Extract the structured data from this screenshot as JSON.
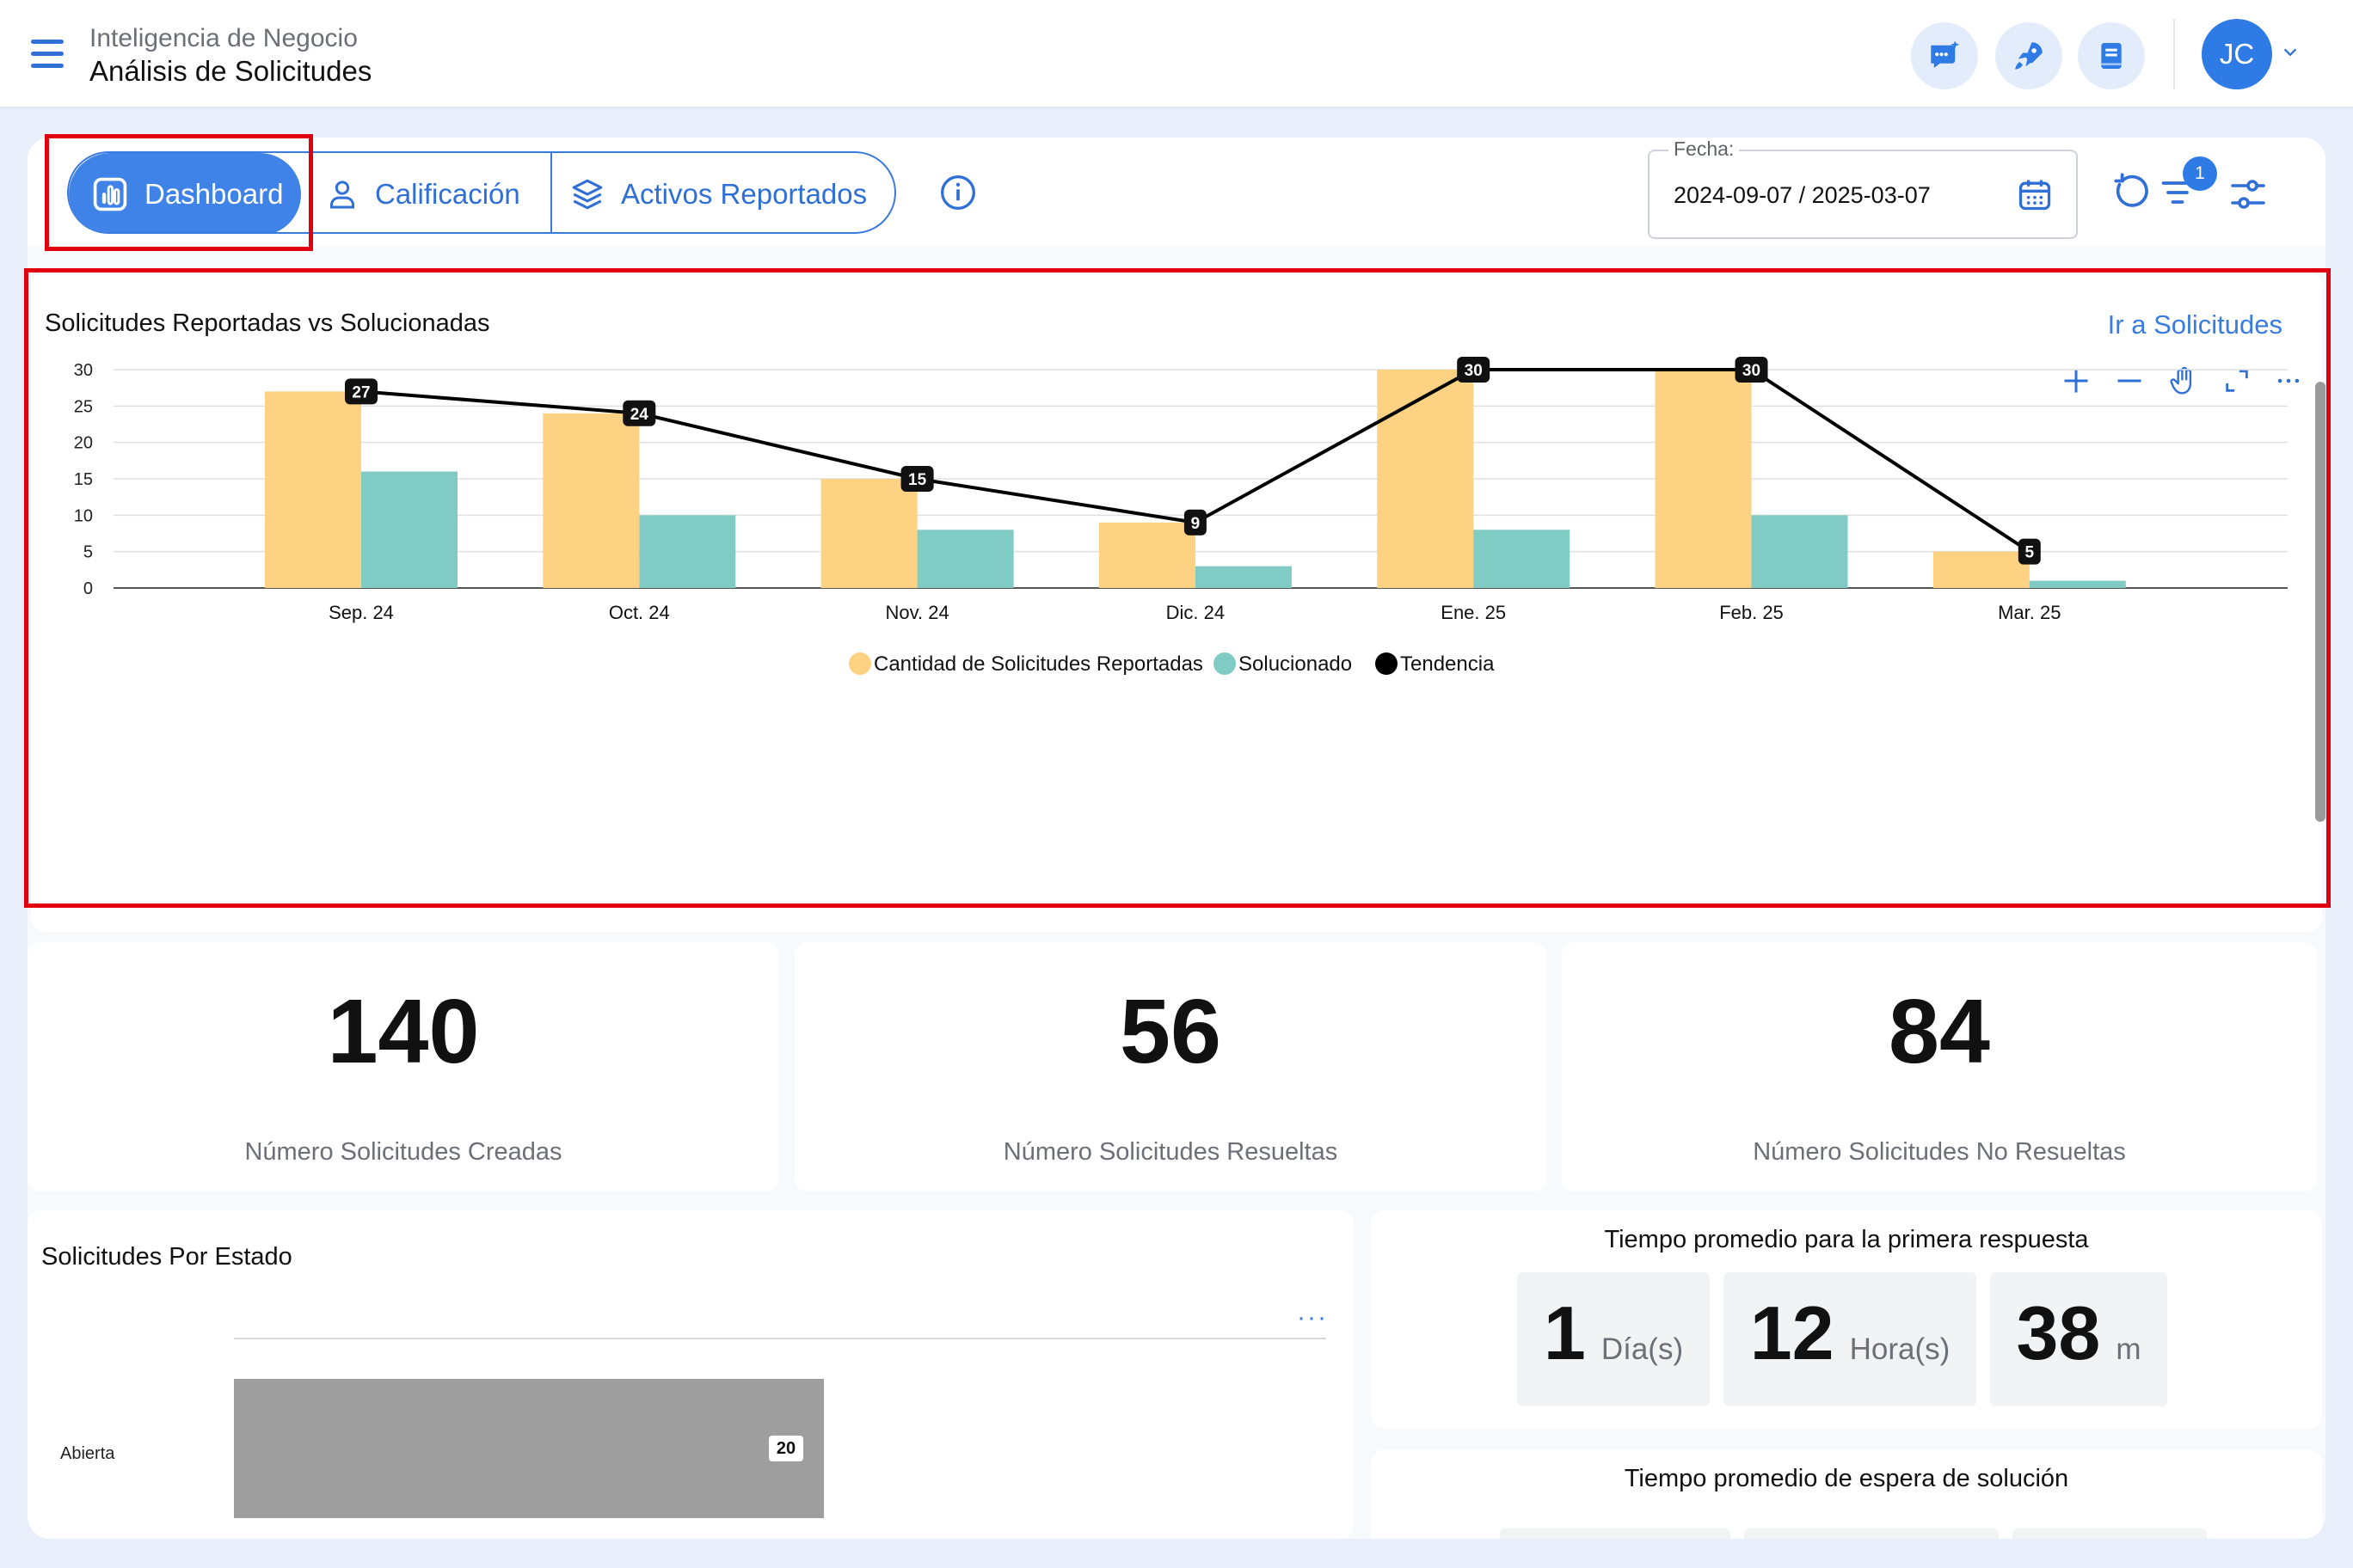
{
  "header": {
    "breadcrumb_top": "Inteligencia de Negocio",
    "title": "Análisis de Solicitudes",
    "user_initials": "JC"
  },
  "tabs": [
    {
      "label": "Dashboard",
      "active": true
    },
    {
      "label": "Calificación",
      "active": false
    },
    {
      "label": "Activos Reportados",
      "active": false
    }
  ],
  "filters": {
    "date_label": "Fecha:",
    "date_value": "2024-09-07 / 2025-03-07",
    "filter_badge": "1"
  },
  "chart": {
    "title": "Solicitudes Reportadas vs Solucionadas",
    "link": "Ir a Solicitudes"
  },
  "chart_data": {
    "type": "bar",
    "categories": [
      "Sep. 24",
      "Oct. 24",
      "Nov. 24",
      "Dic. 24",
      "Ene. 25",
      "Feb. 25",
      "Mar. 25"
    ],
    "series": [
      {
        "name": "Cantidad de Solicitudes Reportadas",
        "type": "bar",
        "color": "#fdd282",
        "values": [
          27,
          24,
          15,
          9,
          30,
          30,
          5
        ]
      },
      {
        "name": "Solucionado",
        "type": "bar",
        "color": "#80cbc4",
        "values": [
          16,
          10,
          8,
          3,
          8,
          10,
          1
        ]
      },
      {
        "name": "Tendencia",
        "type": "line",
        "color": "#000000",
        "values": [
          27,
          24,
          15,
          9,
          30,
          30,
          5
        ]
      }
    ],
    "yticks": [
      0,
      5,
      10,
      15,
      20,
      25,
      30
    ],
    "ylim": [
      0,
      30
    ],
    "grid": true,
    "legend": "bottom"
  },
  "stats": [
    {
      "value": "140",
      "label": "Número Solicitudes Creadas"
    },
    {
      "value": "56",
      "label": "Número Solicitudes Resueltas"
    },
    {
      "value": "84",
      "label": "Número Solicitudes No Resueltas"
    }
  ],
  "estado": {
    "title": "Solicitudes Por Estado",
    "category": "Abierta",
    "value": "20",
    "more": "···"
  },
  "first_response": {
    "title": "Tiempo promedio para la primera respuesta",
    "days": "1",
    "days_unit": "Día(s)",
    "hours": "12",
    "hours_unit": "Hora(s)",
    "minutes": "38",
    "minutes_unit": "m"
  },
  "solution_wait": {
    "title": "Tiempo promedio de espera de solución"
  }
}
